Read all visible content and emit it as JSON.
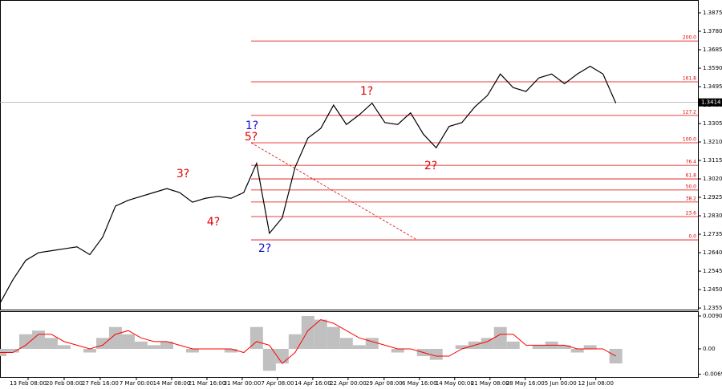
{
  "chart_data": [
    {
      "type": "line",
      "x": [
        0,
        1,
        2,
        3,
        4,
        5,
        6,
        7,
        8,
        9,
        10,
        11,
        12,
        13,
        14,
        15,
        16,
        17,
        18,
        19,
        20,
        21,
        22,
        23,
        24,
        25,
        26,
        27,
        28,
        29,
        30,
        31,
        32,
        33,
        34,
        35,
        36,
        37,
        38,
        39,
        40,
        41,
        42,
        43,
        44,
        45,
        46,
        47,
        48
      ],
      "series": [
        {
          "color": "#000000",
          "values": [
            1.238,
            1.25,
            1.26,
            1.264,
            1.265,
            1.266,
            1.267,
            1.263,
            1.272,
            1.288,
            1.291,
            1.293,
            1.295,
            1.297,
            1.295,
            1.29,
            1.292,
            1.293,
            1.292,
            1.295,
            1.31,
            1.274,
            1.282,
            1.308,
            1.323,
            1.328,
            1.34,
            1.33,
            1.335,
            1.341,
            1.331,
            1.33,
            1.336,
            1.325,
            1.318,
            1.329,
            1.331,
            1.339,
            1.345,
            1.356,
            1.349,
            1.347,
            1.354,
            1.356,
            1.351,
            1.356,
            1.36,
            1.356,
            1.341
          ]
        }
      ],
      "xlim": [
        0,
        54.4
      ],
      "xticks": [
        {
          "value": 2.19,
          "label": "13 Feb 08:00"
        },
        {
          "value": 5,
          "label": "20 Feb 08:00"
        },
        {
          "value": 7.81,
          "label": "27 Feb 16:00"
        },
        {
          "value": 10.63,
          "label": "7 Mar 00:00"
        },
        {
          "value": 13.38,
          "label": "14 Mar 08:00"
        },
        {
          "value": 16.13,
          "label": "21 Mar 16:00"
        },
        {
          "value": 18.88,
          "label": "31 Mar 00:00"
        },
        {
          "value": 21.63,
          "label": "7 Apr 08:00"
        },
        {
          "value": 24.38,
          "label": "14 Apr 16:00"
        },
        {
          "value": 27.13,
          "label": "22 Apr 00:00"
        },
        {
          "value": 29.94,
          "label": "29 Apr 08:00"
        },
        {
          "value": 32.69,
          "label": "6 May 16:00"
        },
        {
          "value": 35.44,
          "label": "14 May 00:00"
        },
        {
          "value": 38.19,
          "label": "21 May 08:00"
        },
        {
          "value": 40.94,
          "label": "28 May 16:00"
        },
        {
          "value": 43.69,
          "label": "5 Jun 00:00"
        },
        {
          "value": 46.44,
          "label": "12 Jun 08:00"
        }
      ],
      "ylim": [
        1.2347,
        1.3937
      ],
      "yticks": [
        1.3875,
        {
          "value": 1.378,
          "label": "1.3780"
        },
        1.3685,
        {
          "value": 1.359,
          "label": "1.3590"
        },
        1.3495,
        {
          "value": 1.34,
          "label": "1.3400"
        },
        1.3305,
        {
          "value": 1.321,
          "label": "1.3210"
        },
        1.3115,
        {
          "value": 1.302,
          "label": "1.3020"
        },
        1.2925,
        {
          "value": 1.283,
          "label": "1.2830"
        },
        1.2735,
        {
          "value": 1.264,
          "label": "1.2640"
        },
        1.2545,
        {
          "value": 1.245,
          "label": "1.2450"
        },
        1.2355
      ],
      "current_price": 1.3414,
      "fib_levels": [
        {
          "label": "200.0",
          "value": 1.373
        },
        {
          "label": "161.8",
          "value": 1.352
        },
        {
          "label": "127.2",
          "value": 1.3347
        },
        {
          "label": "100.0",
          "value": 1.3206
        },
        {
          "label": "76.4",
          "value": 1.309
        },
        {
          "label": "61.8",
          "value": 1.302
        },
        {
          "label": "50.0",
          "value": 1.2963
        },
        {
          "label": "38.2",
          "value": 1.2901
        },
        {
          "label": "23.6",
          "value": 1.2826
        },
        {
          "label": "0.0",
          "value": 1.2706
        }
      ],
      "fib_color": "#e00000",
      "wave_labels": [
        {
          "text": "1?",
          "color": "#1010d0"
        },
        {
          "text": "5?",
          "color": "#e00000"
        },
        {
          "text": "3?",
          "color": "#e00000"
        },
        {
          "text": "4?",
          "color": "#e00000"
        },
        {
          "text": "2?",
          "color": "#1010d0"
        },
        {
          "text": "1?",
          "color": "#e00000"
        },
        {
          "text": "2?",
          "color": "#e00000"
        }
      ]
    },
    {
      "type": "macd",
      "x": [
        0,
        1,
        2,
        3,
        4,
        5,
        6,
        7,
        8,
        9,
        10,
        11,
        12,
        13,
        14,
        15,
        16,
        17,
        18,
        19,
        20,
        21,
        22,
        23,
        24,
        25,
        26,
        27,
        28,
        29,
        30,
        31,
        32,
        33,
        34,
        35,
        36,
        37,
        38,
        39,
        40,
        41,
        42,
        43,
        44,
        45,
        46,
        47,
        48
      ],
      "series": [
        {
          "color": "#c0c0c0",
          "values": [
            -0.002,
            -0.001,
            0.004,
            0.005,
            0.003,
            0.001,
            0.0,
            -0.001,
            0.003,
            0.006,
            0.004,
            0.002,
            0.001,
            0.002,
            0.0,
            -0.001,
            0.0,
            0.0,
            -0.001,
            0.0,
            0.006,
            -0.006,
            -0.004,
            0.004,
            0.009,
            0.008,
            0.006,
            0.003,
            0.001,
            0.003,
            0.0,
            -0.001,
            0.0,
            -0.002,
            -0.003,
            0.0,
            0.001,
            0.002,
            0.003,
            0.006,
            0.002,
            0.0,
            0.001,
            0.002,
            0.001,
            -0.001,
            0.001,
            0.0,
            -0.004
          ]
        },
        {
          "color": "#ff0000",
          "values": [
            -0.001,
            -0.001,
            0.001,
            0.004,
            0.004,
            0.002,
            0.001,
            0.0,
            0.001,
            0.004,
            0.005,
            0.003,
            0.002,
            0.002,
            0.001,
            0.0,
            0.0,
            0.0,
            0.0,
            -0.001,
            0.002,
            0.001,
            -0.004,
            -0.001,
            0.005,
            0.008,
            0.007,
            0.005,
            0.003,
            0.002,
            0.001,
            0.0,
            0.0,
            -0.001,
            -0.002,
            -0.002,
            0.0,
            0.001,
            0.002,
            0.004,
            0.004,
            0.001,
            0.001,
            0.001,
            0.001,
            0.0,
            0.0,
            0.0,
            -0.002
          ]
        }
      ],
      "xlim": [
        0,
        54.4
      ],
      "ylim": [
        -0.0077,
        0.0101
      ],
      "yticks": [
        0.00901,
        {
          "value": 0,
          "label": "0.00"
        },
        -0.00692
      ]
    }
  ]
}
